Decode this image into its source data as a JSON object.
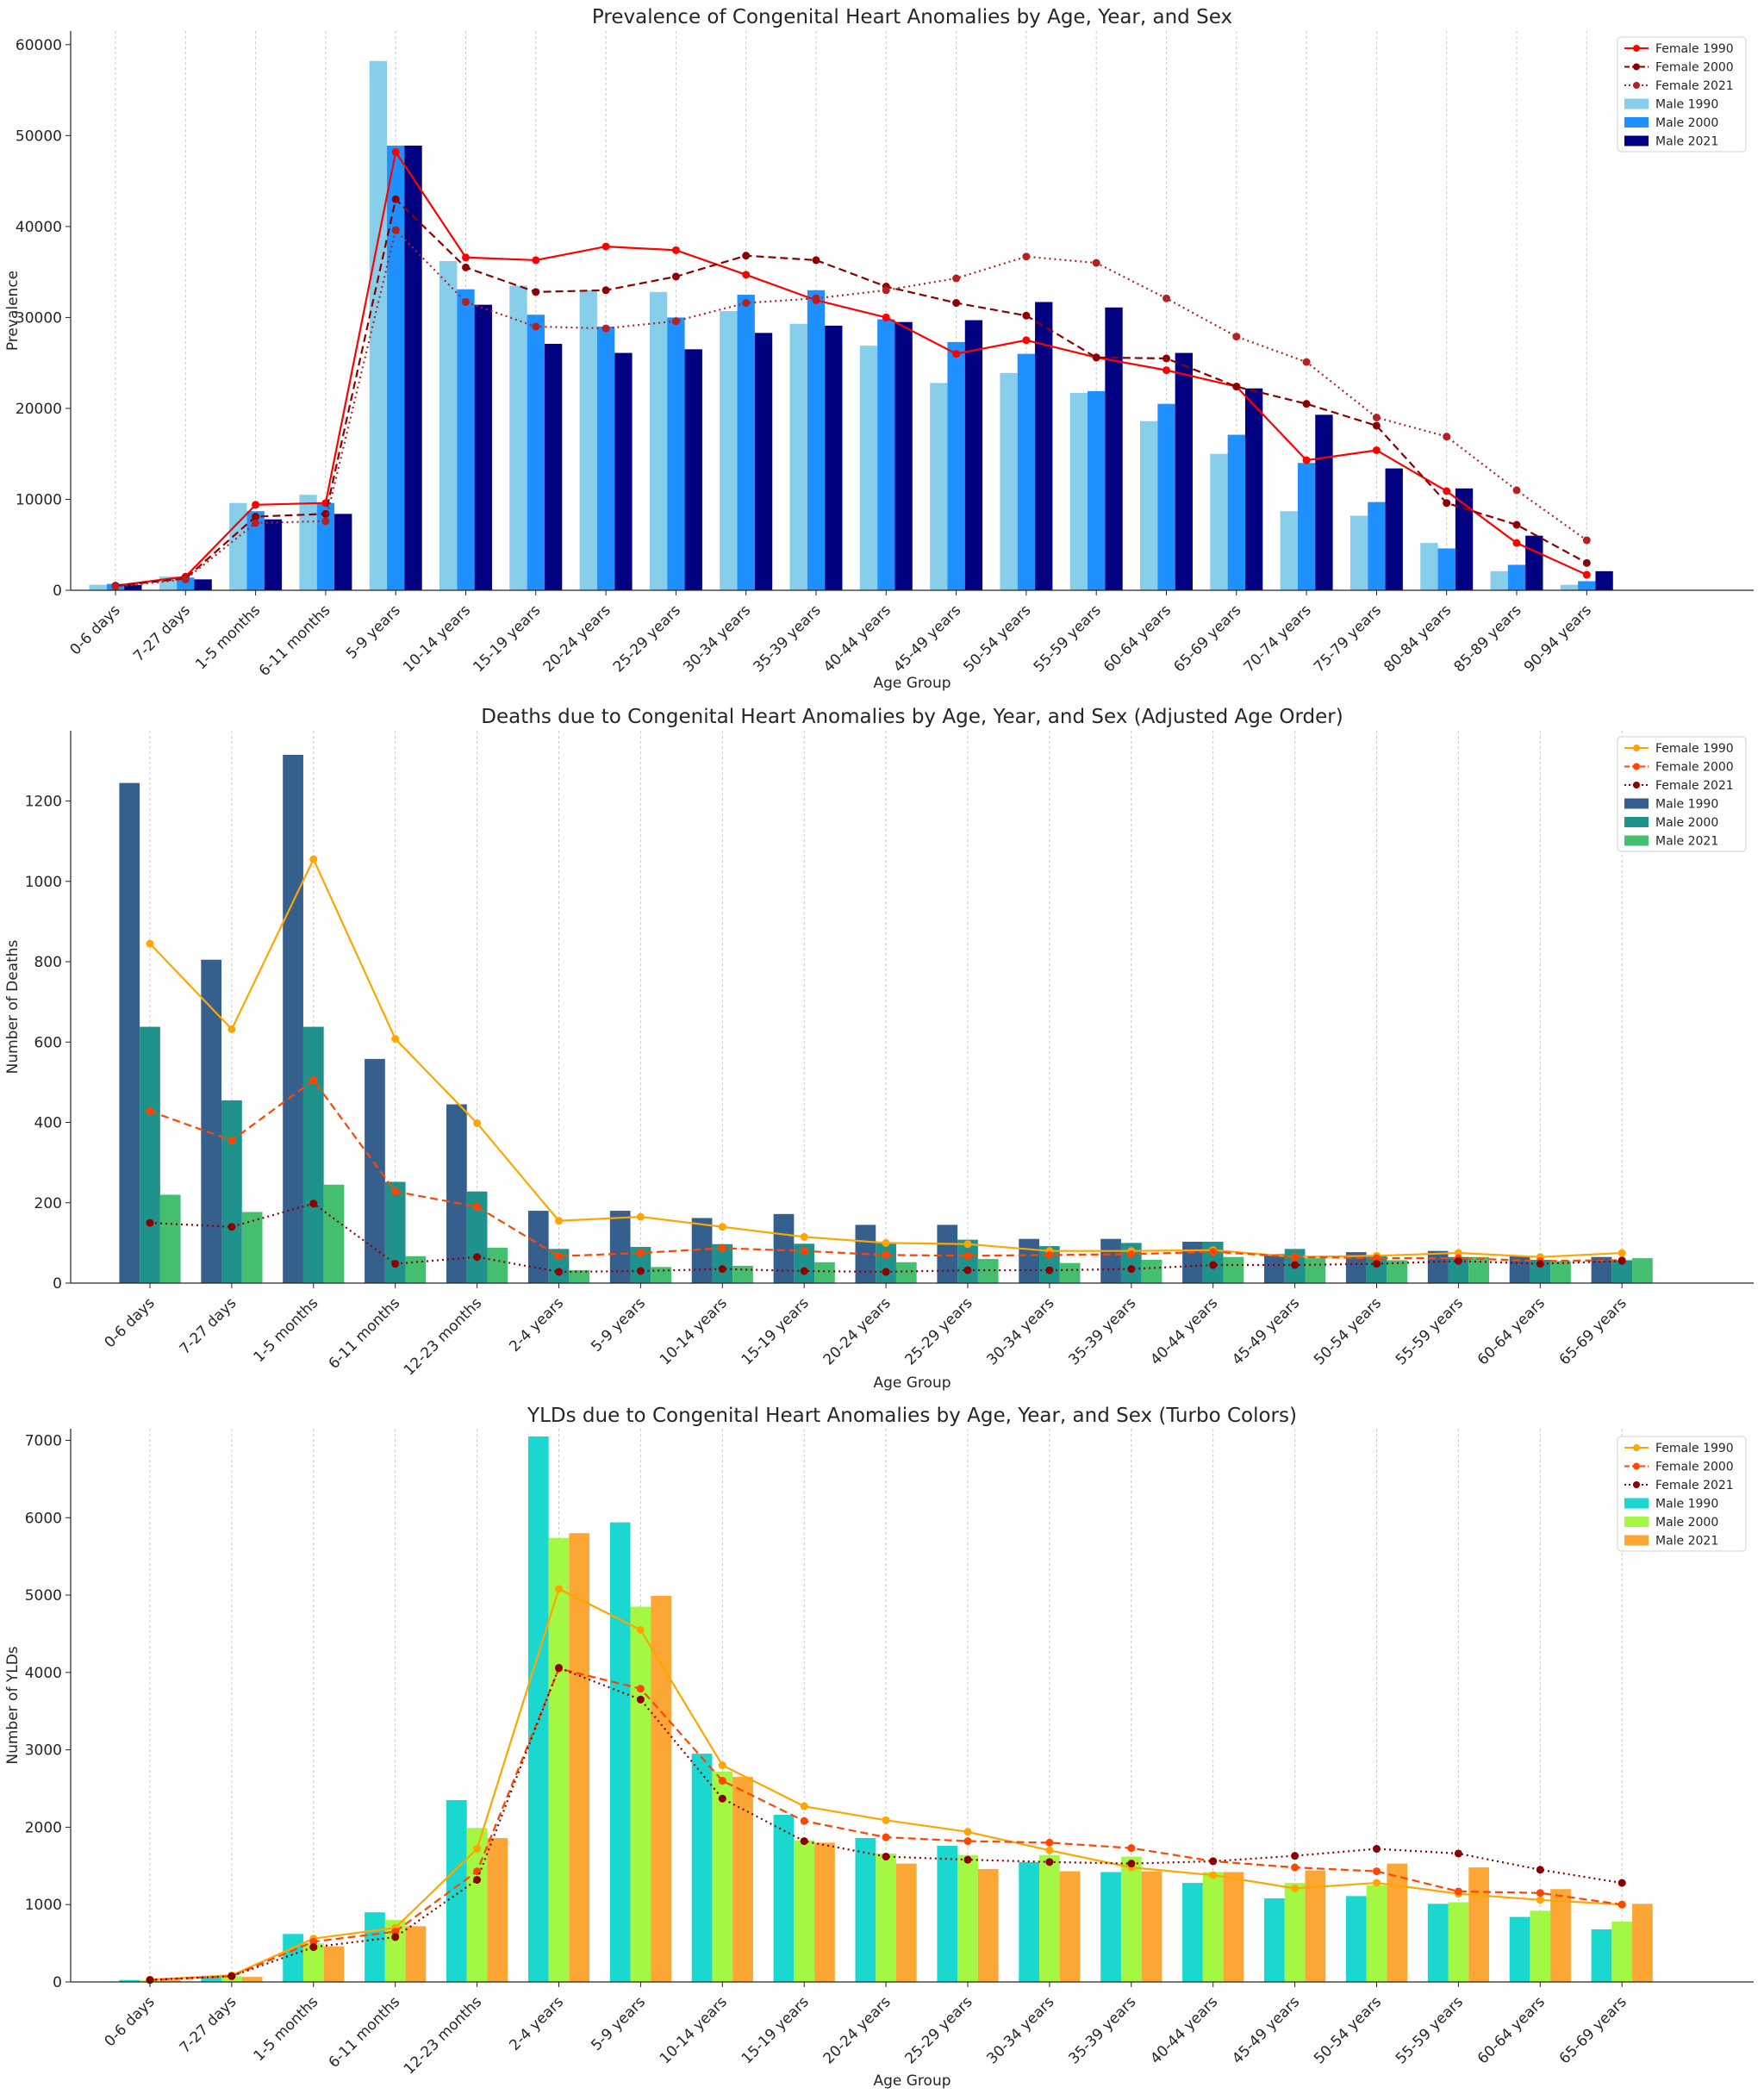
{
  "chart_data": [
    {
      "type": "bar",
      "title": "Prevalence of Congenital Heart Anomalies by Age, Year, and Sex",
      "xlabel": "Age Group",
      "ylabel": "Prevalence",
      "ylim": [
        0,
        61500
      ],
      "yticks": [
        0,
        10000,
        20000,
        30000,
        40000,
        50000,
        60000
      ],
      "grid": "vertical dotted",
      "legend_position": "top-right",
      "categories": [
        "0-6 days",
        "7-27 days",
        "1-5 months",
        "6-11 months",
        "5-9 years",
        "10-14 years",
        "15-19 years",
        "20-24 years",
        "25-29 years",
        "30-34 years",
        "35-39 years",
        "40-44 years",
        "45-49 years",
        "50-54 years",
        "55-59 years",
        "60-64 years",
        "65-69 years",
        "70-74 years",
        "75-79 years",
        "80-84 years",
        "85-89 years",
        "90-94 years"
      ],
      "bar_series": [
        {
          "name": "Male 1990",
          "color": "#87ceeb",
          "values": [
            600,
            1500,
            9600,
            10500,
            58200,
            36200,
            33500,
            33000,
            32800,
            30700,
            29300,
            26900,
            22800,
            23900,
            21700,
            18600,
            15000,
            8700,
            8200,
            5200,
            2100,
            600
          ]
        },
        {
          "name": "Male 2000",
          "color": "#1e90ff",
          "values": [
            700,
            1400,
            8700,
            9600,
            48900,
            33100,
            30300,
            29000,
            30000,
            32500,
            33000,
            29800,
            27300,
            26000,
            21900,
            20500,
            17100,
            14000,
            9700,
            4600,
            2800,
            1000
          ]
        },
        {
          "name": "Male 2021",
          "color": "#000080",
          "values": [
            600,
            1200,
            7800,
            8400,
            48900,
            31400,
            27100,
            26100,
            26500,
            28300,
            29100,
            29500,
            29700,
            31700,
            31100,
            26100,
            22200,
            19300,
            13400,
            11200,
            6000,
            2100
          ]
        }
      ],
      "line_series": [
        {
          "name": "Female 1990",
          "color": "#ff0000",
          "style": "solid",
          "values": [
            500,
            1500,
            9400,
            9600,
            48200,
            36600,
            36300,
            37800,
            37400,
            34700,
            31900,
            30000,
            26000,
            27500,
            25600,
            24200,
            22400,
            14300,
            15400,
            10900,
            5200,
            1700
          ]
        },
        {
          "name": "Female 2000",
          "color": "#8b0000",
          "style": "dashed",
          "values": [
            500,
            1300,
            8100,
            8400,
            43000,
            35500,
            32800,
            33000,
            34500,
            36800,
            36300,
            33400,
            31600,
            30200,
            25600,
            25500,
            22400,
            20500,
            18100,
            9600,
            7200,
            3000
          ]
        },
        {
          "name": "Female 2021",
          "color": "#b22222",
          "style": "dotted",
          "values": [
            400,
            1200,
            7400,
            7600,
            39600,
            31700,
            29000,
            28800,
            29600,
            31600,
            32100,
            33000,
            34300,
            36700,
            36000,
            32100,
            27900,
            25100,
            19000,
            16900,
            11000,
            5500
          ]
        }
      ]
    },
    {
      "type": "bar",
      "title": "Deaths due to Congenital Heart Anomalies by Age, Year, and Sex (Adjusted Age Order)",
      "xlabel": "Age Group",
      "ylabel": "Number of Deaths",
      "ylim": [
        0,
        1375
      ],
      "yticks": [
        0,
        200,
        400,
        600,
        800,
        1000,
        1200
      ],
      "grid": "vertical dotted",
      "legend_position": "top-right",
      "categories": [
        "0-6 days",
        "7-27 days",
        "1-5 months",
        "6-11 months",
        "12-23 months",
        "2-4 years",
        "5-9 years",
        "10-14 years",
        "15-19 years",
        "20-24 years",
        "25-29 years",
        "30-34 years",
        "35-39 years",
        "40-44 years",
        "45-49 years",
        "50-54 years",
        "55-59 years",
        "60-64 years",
        "65-69 years"
      ],
      "bar_series": [
        {
          "name": "Male 1990",
          "color": "#355f8d",
          "values": [
            1245,
            805,
            1315,
            558,
            445,
            180,
            180,
            162,
            172,
            145,
            145,
            110,
            110,
            103,
            72,
            77,
            80,
            68,
            65
          ]
        },
        {
          "name": "Male 2000",
          "color": "#20928c",
          "values": [
            638,
            455,
            638,
            252,
            228,
            85,
            90,
            97,
            98,
            100,
            108,
            92,
            100,
            103,
            85,
            70,
            65,
            58,
            57
          ]
        },
        {
          "name": "Male 2021",
          "color": "#44bf70",
          "values": [
            220,
            177,
            245,
            67,
            88,
            32,
            40,
            43,
            52,
            52,
            60,
            50,
            58,
            65,
            62,
            57,
            65,
            55,
            62
          ]
        }
      ],
      "line_series": [
        {
          "name": "Female 1990",
          "color": "#ffa500",
          "style": "solid",
          "values": [
            845,
            632,
            1055,
            608,
            398,
            155,
            165,
            140,
            115,
            100,
            97,
            80,
            80,
            82,
            65,
            68,
            75,
            65,
            75
          ]
        },
        {
          "name": "Female 2000",
          "color": "#ff4500",
          "style": "dashed",
          "values": [
            428,
            355,
            505,
            228,
            190,
            67,
            75,
            87,
            80,
            70,
            68,
            70,
            72,
            78,
            65,
            62,
            62,
            55,
            57
          ]
        },
        {
          "name": "Female 2021",
          "color": "#8b0000",
          "style": "dotted",
          "values": [
            150,
            140,
            198,
            48,
            65,
            28,
            30,
            35,
            30,
            28,
            32,
            32,
            35,
            45,
            45,
            48,
            55,
            48,
            55
          ]
        }
      ]
    },
    {
      "type": "bar",
      "title": "YLDs due to Congenital Heart Anomalies by Age, Year, and Sex (Turbo Colors)",
      "xlabel": "Age Group",
      "ylabel": "Number of YLDs",
      "ylim": [
        0,
        7150
      ],
      "yticks": [
        0,
        1000,
        2000,
        3000,
        4000,
        5000,
        6000,
        7000
      ],
      "grid": "vertical dotted",
      "legend_position": "top-right",
      "categories": [
        "0-6 days",
        "7-27 days",
        "1-5 months",
        "6-11 months",
        "12-23 months",
        "2-4 years",
        "5-9 years",
        "10-14 years",
        "15-19 years",
        "20-24 years",
        "25-29 years",
        "30-34 years",
        "35-39 years",
        "40-44 years",
        "45-49 years",
        "50-54 years",
        "55-59 years",
        "60-64 years",
        "65-69 years"
      ],
      "bar_series": [
        {
          "name": "Male 1990",
          "color": "#1ad8cf",
          "values": [
            25,
            80,
            620,
            900,
            2350,
            7050,
            5940,
            2950,
            2160,
            1860,
            1760,
            1550,
            1420,
            1280,
            1080,
            1110,
            1010,
            840,
            680
          ]
        },
        {
          "name": "Male 2000",
          "color": "#a4f844",
          "values": [
            20,
            75,
            500,
            800,
            1990,
            5740,
            4850,
            2720,
            1830,
            1660,
            1640,
            1640,
            1620,
            1420,
            1280,
            1250,
            1030,
            920,
            780
          ]
        },
        {
          "name": "Male 2021",
          "color": "#fca636",
          "values": [
            20,
            65,
            460,
            720,
            1860,
            5800,
            4990,
            2650,
            1800,
            1530,
            1460,
            1430,
            1430,
            1420,
            1440,
            1530,
            1480,
            1200,
            1010
          ]
        }
      ],
      "line_series": [
        {
          "name": "Female 1990",
          "color": "#ffa500",
          "style": "solid",
          "values": [
            30,
            85,
            560,
            700,
            1720,
            5080,
            4550,
            2800,
            2270,
            2090,
            1940,
            1700,
            1480,
            1380,
            1210,
            1280,
            1140,
            1060,
            1000
          ]
        },
        {
          "name": "Female 2000",
          "color": "#ff4500",
          "style": "dashed",
          "values": [
            25,
            75,
            520,
            650,
            1430,
            4050,
            3790,
            2600,
            2080,
            1870,
            1820,
            1800,
            1730,
            1560,
            1480,
            1430,
            1170,
            1150,
            1000
          ]
        },
        {
          "name": "Female 2021",
          "color": "#8b0000",
          "style": "dotted",
          "values": [
            25,
            75,
            450,
            580,
            1320,
            4060,
            3650,
            2370,
            1820,
            1620,
            1580,
            1550,
            1530,
            1560,
            1630,
            1720,
            1660,
            1450,
            1280
          ]
        }
      ]
    }
  ]
}
